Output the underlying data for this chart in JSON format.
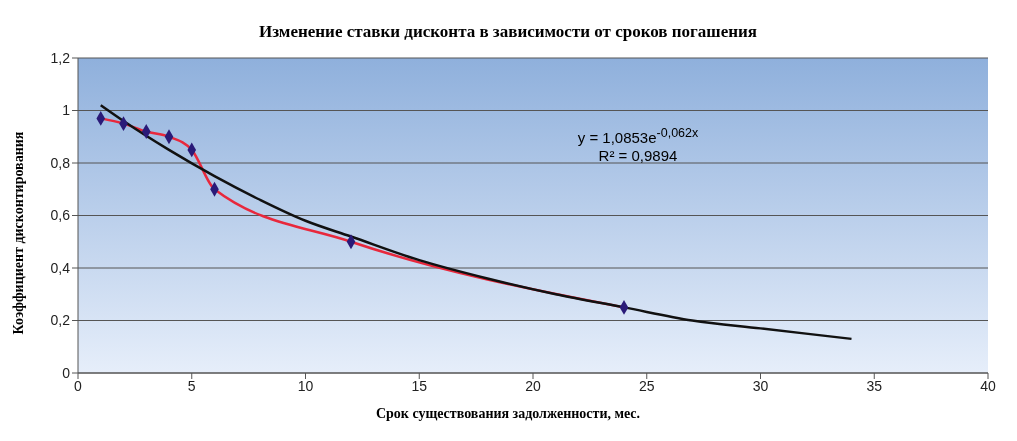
{
  "chart_data": {
    "type": "line",
    "title": "Изменение ставки дисконта в зависимости от сроков погашения",
    "xlabel": "Срок существования задолженности, мес.",
    "ylabel": "Коэффициент дисконтирования",
    "xlim": [
      0,
      40
    ],
    "xticks": [
      0,
      5,
      10,
      15,
      20,
      25,
      30,
      35,
      40
    ],
    "ylim": [
      0,
      1.2
    ],
    "yticks": [
      0,
      {
        "value": 0.2,
        "label": "0,2"
      },
      {
        "value": 0.4,
        "label": "0,4"
      },
      {
        "value": 0.6,
        "label": "0,6"
      },
      {
        "value": 0.8,
        "label": "0,8"
      },
      1,
      {
        "value": 1.2,
        "label": "1,2"
      }
    ],
    "grid": "y",
    "series": [
      {
        "color": "#e8283c",
        "marker": "none",
        "x": [
          1,
          2,
          3,
          4,
          5,
          6,
          12,
          24
        ],
        "values": [
          0.97,
          0.95,
          0.92,
          0.9,
          0.85,
          0.7,
          0.5,
          0.25
        ]
      },
      {
        "type": "scatter",
        "color": "#2a1a78",
        "marker": "diamond",
        "x": [
          1,
          2,
          3,
          4,
          5,
          6,
          12,
          24
        ],
        "values": [
          0.97,
          0.95,
          0.92,
          0.9,
          0.85,
          0.7,
          0.5,
          0.25
        ]
      },
      {
        "color": "#111111",
        "marker": "none",
        "x": [
          1,
          2,
          4,
          6,
          8,
          10,
          12,
          15,
          18,
          21,
          24,
          27,
          30,
          34
        ],
        "values": [
          1.02,
          0.96,
          0.85,
          0.75,
          0.66,
          0.58,
          0.52,
          0.43,
          0.36,
          0.3,
          0.25,
          0.2,
          0.17,
          0.13
        ]
      }
    ],
    "annotations": [
      "y = 1,0853e$^{-0,062x}$",
      "R² = 0,9894"
    ]
  }
}
